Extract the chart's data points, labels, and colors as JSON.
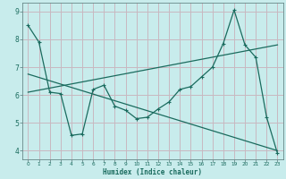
{
  "xlabel": "Humidex (Indice chaleur)",
  "ylabel": "",
  "xlim": [
    -0.5,
    23.5
  ],
  "ylim": [
    3.7,
    9.3
  ],
  "yticks": [
    4,
    5,
    6,
    7,
    8,
    9
  ],
  "xticks": [
    0,
    1,
    2,
    3,
    4,
    5,
    6,
    7,
    8,
    9,
    10,
    11,
    12,
    13,
    14,
    15,
    16,
    17,
    18,
    19,
    20,
    21,
    22,
    23
  ],
  "bg_color": "#c8ecec",
  "line_color": "#1a6b5e",
  "grid_color": "#c8b8c0",
  "line1_x": [
    0,
    1,
    2,
    3,
    4,
    5,
    6,
    7,
    8,
    9,
    10,
    11,
    12,
    13,
    14,
    15,
    16,
    17,
    18,
    19,
    20,
    21,
    22,
    23
  ],
  "line1_y": [
    8.5,
    7.9,
    6.1,
    6.05,
    4.55,
    4.6,
    6.2,
    6.35,
    5.6,
    5.45,
    5.15,
    5.2,
    5.5,
    5.75,
    6.2,
    6.3,
    6.65,
    7.0,
    7.85,
    9.05,
    7.8,
    7.35,
    5.2,
    3.9
  ],
  "line2_x": [
    0,
    23
  ],
  "line2_y": [
    6.75,
    4.0
  ],
  "line3_x": [
    0,
    23
  ],
  "line3_y": [
    6.1,
    7.8
  ]
}
